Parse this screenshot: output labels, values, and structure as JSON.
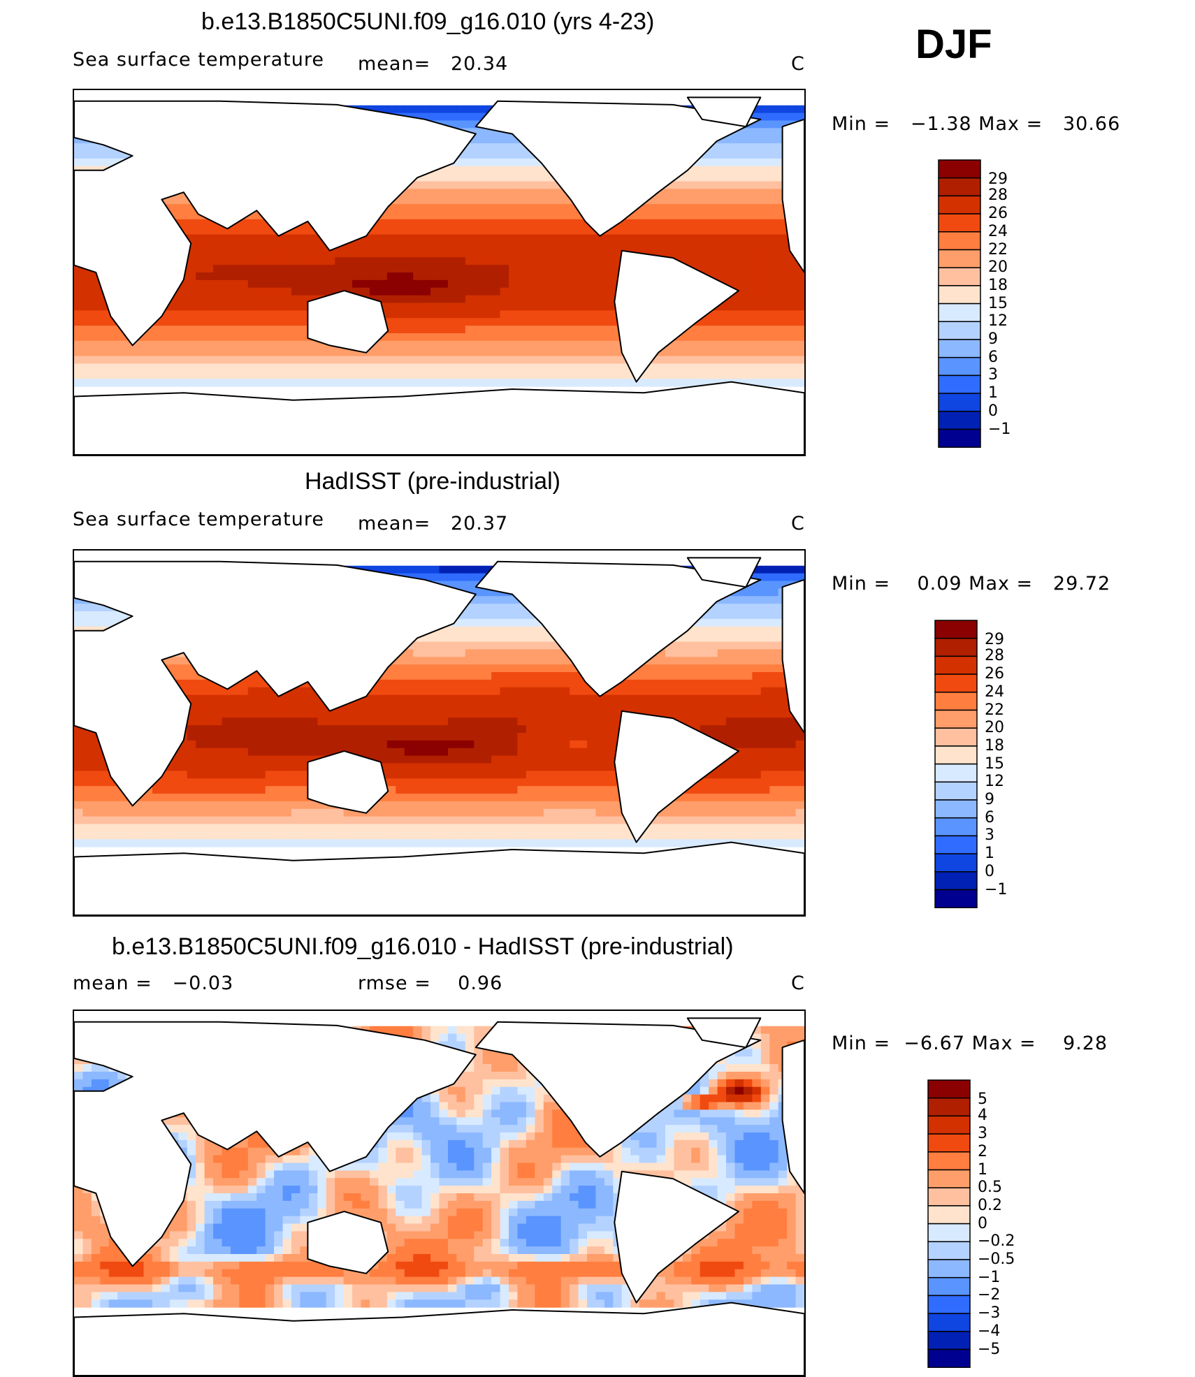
{
  "season": "DJF",
  "panels": [
    {
      "title": "b.e13.B1850C5UNI.f09_g16.010 (yrs 4-23)",
      "label_left": "Sea surface temperature",
      "label_mid": "mean=   20.34",
      "units": "C",
      "minmax": "Min =   −1.38 Max =   30.66"
    },
    {
      "title": "HadISST (pre-industrial)",
      "label_left": "Sea surface temperature",
      "label_mid": "mean=   20.37",
      "units": "C",
      "minmax": "Min =    0.09 Max =   29.72"
    },
    {
      "title": "b.e13.B1850C5UNI.f09_g16.010 - HadISST (pre-industrial)",
      "label_left": "mean =   −0.03",
      "label_mid": "rmse =    0.96",
      "units": "C",
      "minmax": "Min =  −6.67 Max =    9.28"
    }
  ],
  "chart_data": [
    {
      "type": "heatmap",
      "title": "b.e13.B1850C5UNI.f09_g16.010 (yrs 4-23)",
      "variable": "Sea surface temperature",
      "units": "C",
      "mean": 20.34,
      "min": -1.38,
      "max": 30.66,
      "colorbar_levels": [
        "29",
        "28",
        "26",
        "24",
        "22",
        "20",
        "18",
        "15",
        "12",
        "9",
        "6",
        "3",
        "1",
        "0",
        "−1"
      ],
      "colorbar_colors": [
        "#8b0000",
        "#b01f00",
        "#d43100",
        "#f04a10",
        "#ff7e40",
        "#ff9e6a",
        "#ffc0a0",
        "#ffe3cc",
        "#d8eaff",
        "#b4d2ff",
        "#8cb8ff",
        "#5a94ff",
        "#2f6cff",
        "#0f45e0",
        "#0021b4",
        "#000090"
      ]
    },
    {
      "type": "heatmap",
      "title": "HadISST (pre-industrial)",
      "variable": "Sea surface temperature",
      "units": "C",
      "mean": 20.37,
      "min": 0.09,
      "max": 29.72,
      "colorbar_levels": [
        "29",
        "28",
        "26",
        "24",
        "22",
        "20",
        "18",
        "15",
        "12",
        "9",
        "6",
        "3",
        "1",
        "0",
        "−1"
      ],
      "colorbar_colors": [
        "#8b0000",
        "#b01f00",
        "#d43100",
        "#f04a10",
        "#ff7e40",
        "#ff9e6a",
        "#ffc0a0",
        "#ffe3cc",
        "#d8eaff",
        "#b4d2ff",
        "#8cb8ff",
        "#5a94ff",
        "#2f6cff",
        "#0f45e0",
        "#0021b4",
        "#000090"
      ]
    },
    {
      "type": "heatmap",
      "title": "b.e13.B1850C5UNI.f09_g16.010 - HadISST (pre-industrial)",
      "units": "C",
      "mean": -0.03,
      "rmse": 0.96,
      "min": -6.67,
      "max": 9.28,
      "colorbar_levels": [
        "5",
        "4",
        "3",
        "2",
        "1",
        "0.5",
        "0.2",
        "0",
        "−0.2",
        "−0.5",
        "−1",
        "−2",
        "−3",
        "−4",
        "−5"
      ],
      "colorbar_colors": [
        "#8b0000",
        "#b01f00",
        "#d43100",
        "#f04a10",
        "#ff7e40",
        "#ff9e6a",
        "#ffc0a0",
        "#ffe3cc",
        "#d8eaff",
        "#b4d2ff",
        "#8cb8ff",
        "#5a94ff",
        "#2f6cff",
        "#0f45e0",
        "#0021b4",
        "#000090"
      ]
    }
  ]
}
